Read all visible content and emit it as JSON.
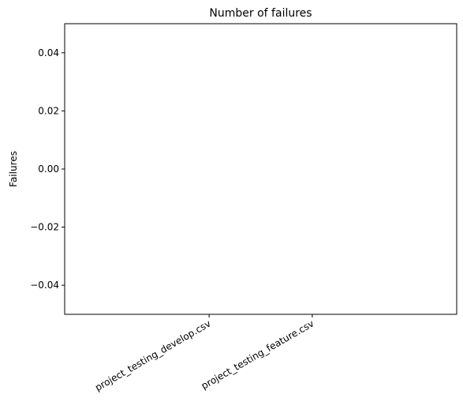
{
  "chart_data": {
    "type": "bar",
    "title": "Number of failures",
    "xlabel": "",
    "ylabel": "Failures",
    "categories": [
      "project_testing_develop.csv",
      "project_testing_feature.csv"
    ],
    "values": [
      0,
      0
    ],
    "ylim": [
      -0.05,
      0.05
    ],
    "yticks": [
      -0.04,
      -0.02,
      0.0,
      0.02,
      0.04
    ],
    "ytick_labels": [
      "−0.04",
      "−0.02",
      "0.00",
      "0.02",
      "0.04"
    ],
    "grid": false,
    "legend": "none"
  }
}
